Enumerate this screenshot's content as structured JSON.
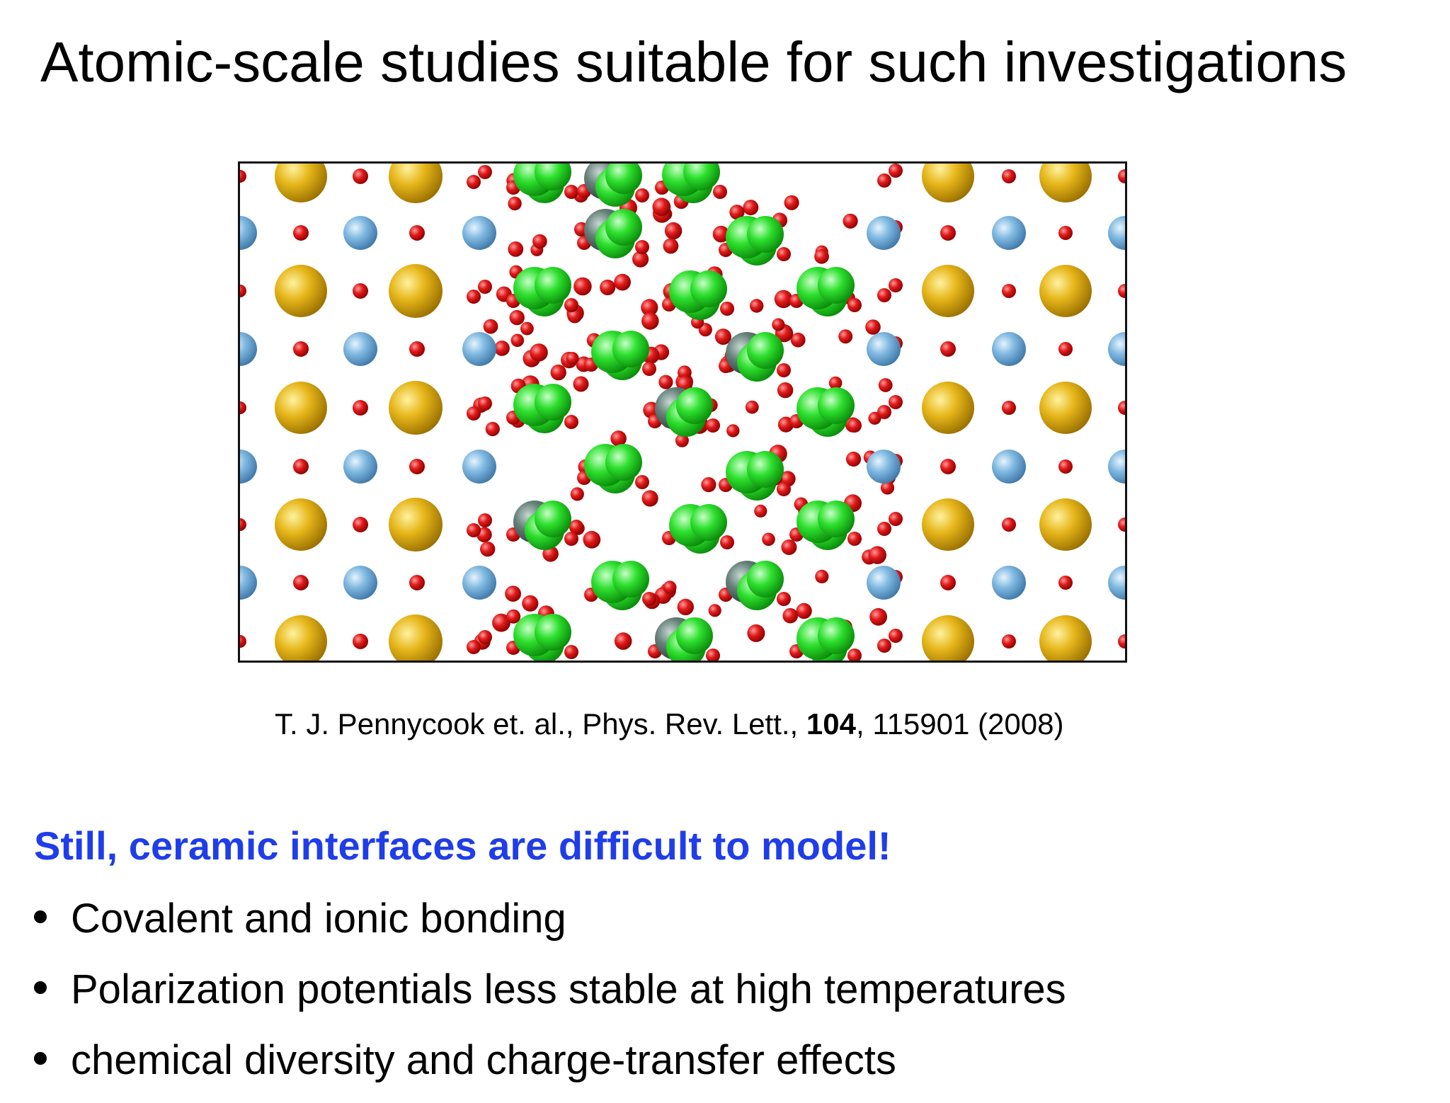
{
  "slide": {
    "title": "Atomic-scale studies suitable for such investigations",
    "figure": {
      "atom_colors": {
        "yellow": "#e6b61a",
        "blue": "#7fb8e0",
        "red": "#e01a1a",
        "green": "#2ee02e",
        "gray": "#66807a"
      }
    },
    "citation": {
      "authors": "T. J. Pennycook et. al., Phys. Rev. Lett., ",
      "volume": "104",
      "rest": ", 115901 (2008)"
    },
    "subheading": "Still, ceramic interfaces are difficult to model!",
    "bullets": [
      "Covalent and ionic bonding",
      "Polarization potentials less stable at high temperatures",
      "chemical diversity and charge-transfer effects"
    ]
  }
}
